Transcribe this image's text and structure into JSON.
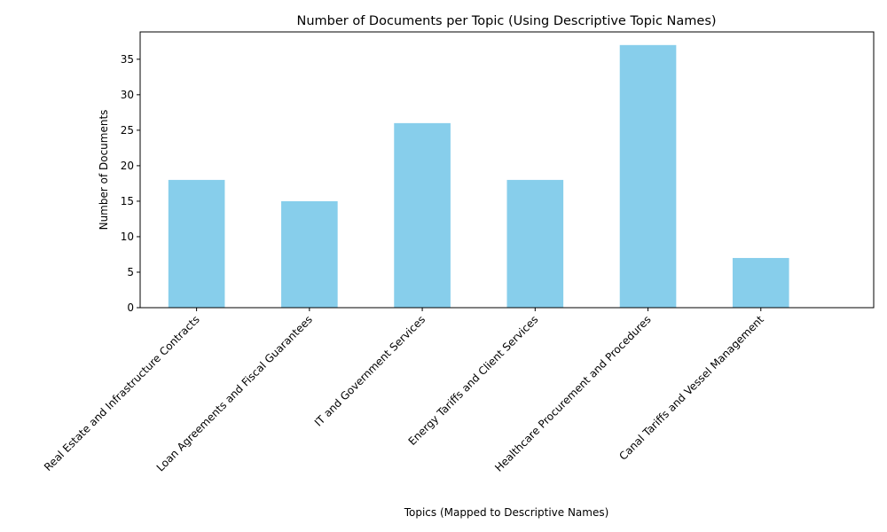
{
  "chart_data": {
    "type": "bar",
    "title": "Number of Documents per Topic (Using Descriptive Topic Names)",
    "xlabel": "Topics (Mapped to Descriptive Names)",
    "ylabel": "Number of Documents",
    "categories": [
      "Real Estate and Infrastructure Contracts",
      "Loan Agreements and Fiscal Guarantees",
      "IT and Government Services",
      "Energy Tariffs and Client Services",
      "Healthcare Procurement and Procedures",
      "Canal Tariffs and Vessel Management"
    ],
    "values": [
      18,
      15,
      26,
      18,
      37,
      7
    ],
    "yticks": [
      0,
      5,
      10,
      15,
      20,
      25,
      30,
      35
    ],
    "ylim": [
      0,
      38.85
    ],
    "grid": false,
    "bar_color": "#87ceeb"
  }
}
